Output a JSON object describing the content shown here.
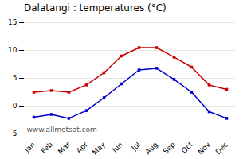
{
  "chart_data": {
    "type": "line",
    "title": "Dalatangi : temperatures (°C)",
    "categories": [
      "Jan",
      "Feb",
      "Mar",
      "Apr",
      "May",
      "Jun",
      "Jul",
      "Aug",
      "Sep",
      "Oct",
      "Nov",
      "Dec"
    ],
    "series": [
      {
        "color": "#cc0000",
        "marker": "square",
        "line_style": "solid",
        "values": [
          2.5,
          2.8,
          2.5,
          3.8,
          6.0,
          9.0,
          10.5,
          10.5,
          8.8,
          7.0,
          3.8,
          3.0
        ]
      },
      {
        "color": "#0000cc",
        "marker": "square",
        "line_style": "solid",
        "values": [
          -2.0,
          -1.5,
          -2.2,
          -0.8,
          1.5,
          4.0,
          6.5,
          6.8,
          4.8,
          2.5,
          -1.0,
          -2.2
        ]
      }
    ],
    "ylim": [
      -5,
      15
    ],
    "yticks": [
      -5,
      0,
      5,
      10,
      15
    ],
    "grid": true,
    "annotations": [
      "www.allmetsat.com"
    ]
  }
}
